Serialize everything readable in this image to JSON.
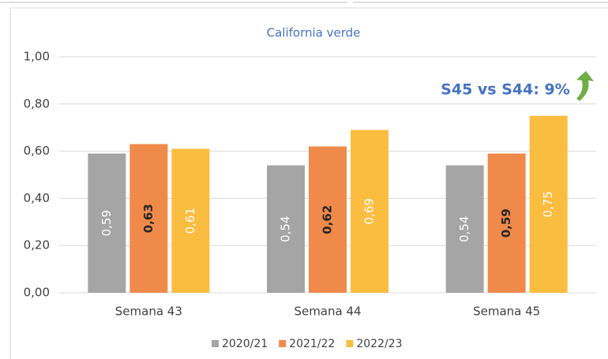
{
  "chart_data": {
    "type": "bar",
    "title": "California verde",
    "categories": [
      "Semana 43",
      "Semana 44",
      "Semana 45"
    ],
    "series": [
      {
        "name": "2020/21",
        "color": "#a5a5a5",
        "values": [
          0.59,
          0.54,
          0.54
        ],
        "value_labels": [
          "0,59",
          "0,54",
          "0,54"
        ]
      },
      {
        "name": "2021/22",
        "color": "#f08a4b",
        "values": [
          0.63,
          0.62,
          0.59
        ],
        "value_labels": [
          "0,63",
          "0,62",
          "0,59"
        ]
      },
      {
        "name": "2022/23",
        "color": "#fbbd40",
        "values": [
          0.61,
          0.69,
          0.75
        ],
        "value_labels": [
          "0,61",
          "0,69",
          "0,75"
        ]
      }
    ],
    "ylim": [
      0,
      1
    ],
    "yticks": [
      {
        "value": 0,
        "label": "0,00"
      },
      {
        "value": 0.2,
        "label": "0,20"
      },
      {
        "value": 0.4,
        "label": "0,40"
      },
      {
        "value": 0.6,
        "label": "0,60"
      },
      {
        "value": 0.8,
        "label": "0,80"
      },
      {
        "value": 1,
        "label": "1,00"
      }
    ],
    "grid": true,
    "legend": "bottom",
    "annotation": "S45 vs S44: 9%"
  }
}
